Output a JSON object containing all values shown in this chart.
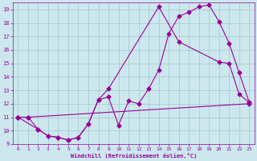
{
  "xlabel": "Windchill (Refroidissement éolien,°C)",
  "bg_color": "#cce8ee",
  "line_color": "#990099",
  "grid_color": "#aacccc",
  "xlim": [
    -0.5,
    23.5
  ],
  "ylim": [
    9,
    19.5
  ],
  "xticks": [
    0,
    1,
    2,
    3,
    4,
    5,
    6,
    7,
    8,
    9,
    10,
    11,
    12,
    13,
    14,
    15,
    16,
    17,
    18,
    19,
    20,
    21,
    22,
    23
  ],
  "yticks": [
    9,
    10,
    11,
    12,
    13,
    14,
    15,
    16,
    17,
    18,
    19
  ],
  "curve1_x": [
    0,
    1,
    2,
    3,
    4,
    5,
    6,
    7,
    8,
    9,
    10,
    11,
    12,
    13,
    14,
    15,
    16,
    17,
    18,
    19,
    20,
    21,
    22,
    23
  ],
  "curve1_y": [
    11,
    11,
    10.1,
    9.6,
    9.5,
    9.3,
    9.5,
    10.5,
    12.3,
    12.5,
    10.4,
    12.2,
    12.0,
    13.1,
    14.5,
    17.2,
    18.5,
    18.8,
    19.2,
    19.35,
    18.1,
    16.5,
    14.3,
    12.1
  ],
  "curve2_x": [
    0,
    2,
    3,
    4,
    5,
    6,
    7,
    8,
    9,
    14,
    16,
    20,
    21,
    22,
    23
  ],
  "curve2_y": [
    11,
    10.1,
    9.6,
    9.5,
    9.3,
    9.5,
    10.5,
    12.3,
    13.1,
    19.2,
    16.6,
    15.1,
    15.0,
    12.7,
    12.1
  ],
  "curve3_x": [
    0,
    1,
    23
  ],
  "curve3_y": [
    11,
    11,
    12.0
  ]
}
